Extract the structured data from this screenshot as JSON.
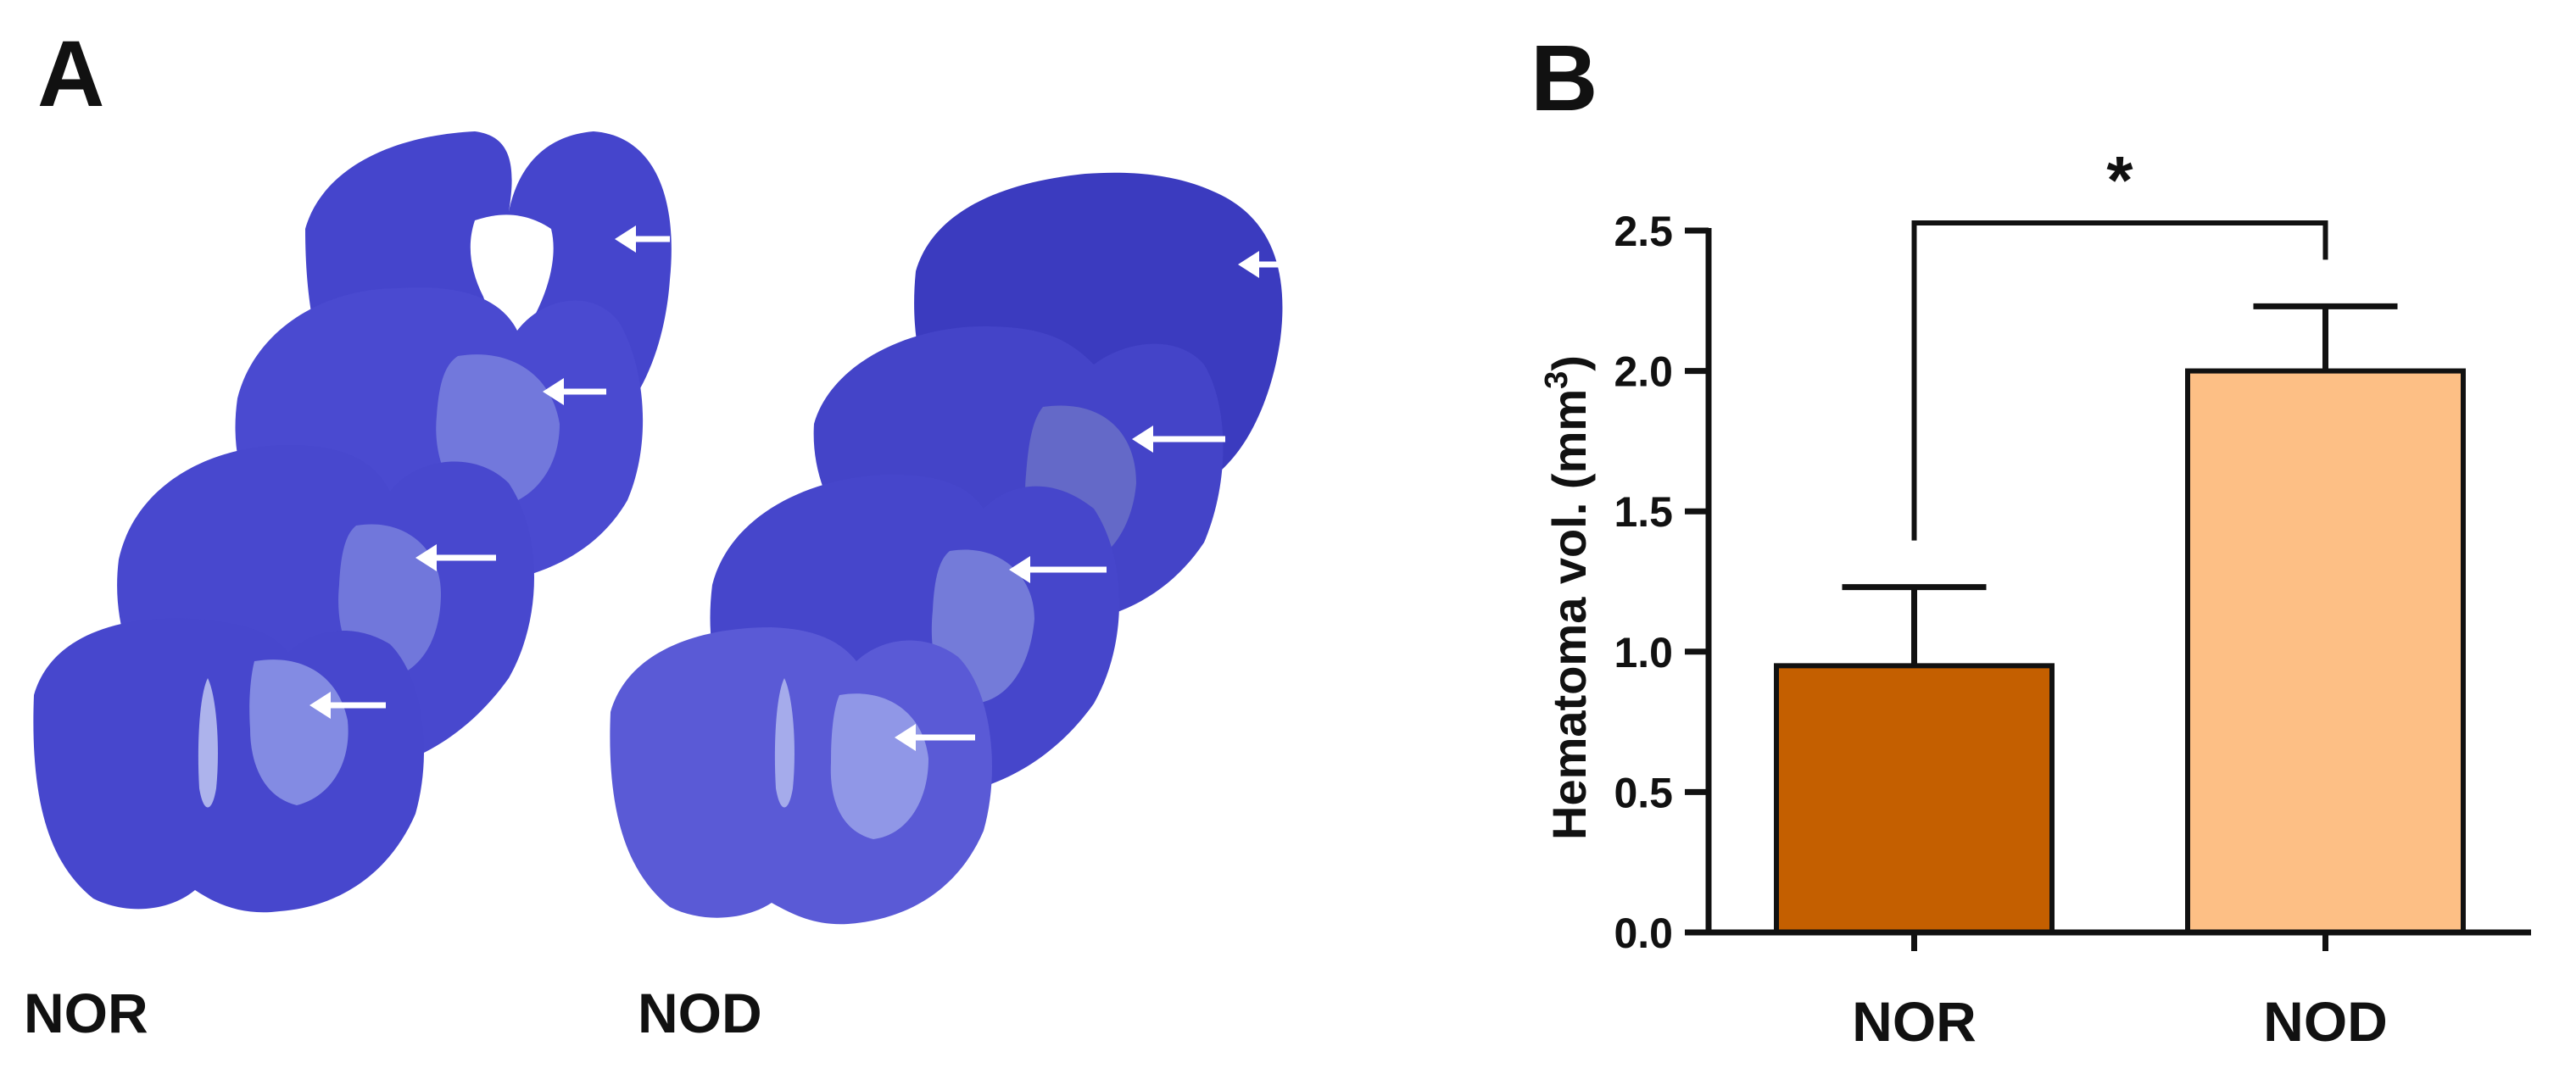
{
  "panel_a": {
    "label": "A",
    "groups": [
      "NOR",
      "NOD"
    ]
  },
  "panel_b": {
    "label": "B"
  },
  "colors": {
    "tissue": "#4a4ad0",
    "tissue_dark": "#3535b5",
    "tissue_light": "#7b7ce0",
    "lesion": "#8e98e6",
    "arrow": "#ffffff",
    "bar_nor": "#c45f00",
    "bar_nod": "#fdbf85",
    "axis": "#111111"
  },
  "chart_data": {
    "type": "bar",
    "title": "",
    "xlabel": "",
    "ylabel": "Hematoma vol. (mm",
    "ylabel_sup": "3",
    "ylabel_end": ")",
    "categories": [
      "NOR",
      "NOD"
    ],
    "values": [
      0.95,
      2.0
    ],
    "error_upper": [
      0.28,
      0.23
    ],
    "ylim": [
      0,
      2.5
    ],
    "yticks": [
      0.0,
      0.5,
      1.0,
      1.5,
      2.0,
      2.5
    ],
    "ytick_labels": [
      "0.0",
      "0.5",
      "1.0",
      "1.5",
      "2.0",
      "2.5"
    ],
    "significance": {
      "between": [
        "NOR",
        "NOD"
      ],
      "label": "*"
    }
  }
}
